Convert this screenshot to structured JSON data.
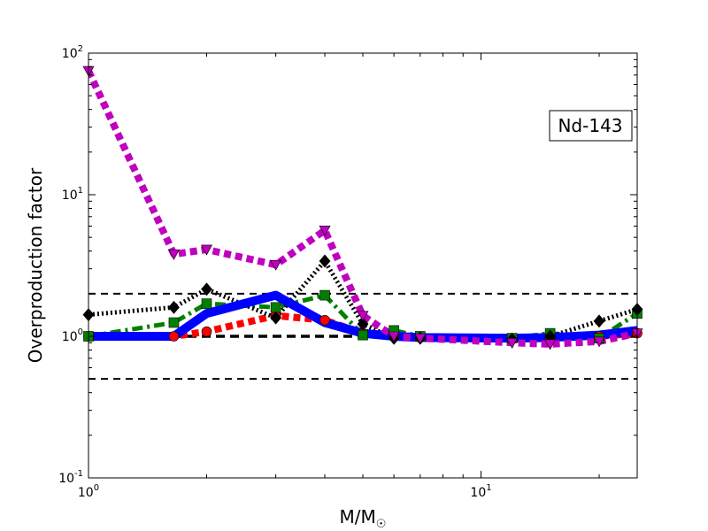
{
  "chart_data": {
    "type": "line",
    "title": "",
    "xlabel": "M/M",
    "xlabel_subscript": "☉",
    "ylabel": "Overproduction factor",
    "xscale": "log",
    "yscale": "log",
    "xlim": [
      1,
      25
    ],
    "ylim": [
      0.1,
      100
    ],
    "x_ticks": [
      {
        "value": 1,
        "base": "10",
        "exp": "0"
      },
      {
        "value": 10,
        "base": "10",
        "exp": "1"
      }
    ],
    "y_ticks": [
      {
        "value": 0.1,
        "base": "10",
        "exp": "-1"
      },
      {
        "value": 1,
        "base": "10",
        "exp": "0"
      },
      {
        "value": 10,
        "base": "10",
        "exp": "1"
      },
      {
        "value": 100,
        "base": "10",
        "exp": "2"
      }
    ],
    "annotation": "Nd-143",
    "legend": "none",
    "grid": false,
    "reference_lines": [
      {
        "y": 2.0,
        "color": "#000000",
        "style": "dashed",
        "width": 2
      },
      {
        "y": 1.0,
        "color": "#000000",
        "style": "dashed",
        "width": 3.5
      },
      {
        "y": 0.5,
        "color": "#000000",
        "style": "dashed",
        "width": 2
      }
    ],
    "series": [
      {
        "color": "#ff0000",
        "marker": "circle",
        "linestyle": "dotted",
        "linewidth": 8,
        "x": [
          1,
          1.65,
          2,
          3,
          4,
          5,
          6,
          7,
          12,
          15,
          20,
          25
        ],
        "y": [
          1.0,
          1.0,
          1.08,
          1.4,
          1.3,
          1.05,
          1.0,
          0.98,
          0.97,
          0.98,
          1.0,
          1.05
        ]
      },
      {
        "color": "#008000",
        "marker": "square",
        "linestyle": "dashdot",
        "linewidth": 5,
        "x": [
          1,
          1.65,
          2,
          3,
          4,
          5,
          6,
          7,
          12,
          15,
          20,
          25
        ],
        "y": [
          1.0,
          1.25,
          1.7,
          1.6,
          1.95,
          1.02,
          1.1,
          1.0,
          0.97,
          1.05,
          0.97,
          1.45
        ]
      },
      {
        "color": "#000000",
        "marker": "diamond",
        "linestyle": "dotted-thin",
        "linewidth": 5,
        "x": [
          1,
          1.65,
          2,
          3,
          4,
          5,
          6,
          7,
          12,
          15,
          20,
          25
        ],
        "y": [
          1.42,
          1.6,
          2.15,
          1.35,
          3.4,
          1.22,
          0.97,
          0.97,
          0.95,
          1.0,
          1.28,
          1.55
        ]
      },
      {
        "color": "#0000ff",
        "marker": "none",
        "linestyle": "solid",
        "linewidth": 10,
        "x": [
          1,
          1.65,
          2,
          3,
          4,
          5,
          6,
          7,
          12,
          15,
          20,
          25
        ],
        "y": [
          1.0,
          1.0,
          1.45,
          1.95,
          1.25,
          1.05,
          1.0,
          0.98,
          0.97,
          0.98,
          1.02,
          1.1
        ]
      },
      {
        "color": "#bf00bf",
        "marker": "triangle-down",
        "linestyle": "dotted",
        "linewidth": 8,
        "x": [
          1,
          1.65,
          2,
          3,
          4,
          5,
          6,
          7,
          12,
          15,
          20,
          25
        ],
        "y": [
          75,
          3.8,
          4.1,
          3.2,
          5.6,
          1.4,
          1.0,
          0.97,
          0.9,
          0.88,
          0.92,
          1.05
        ]
      }
    ]
  }
}
